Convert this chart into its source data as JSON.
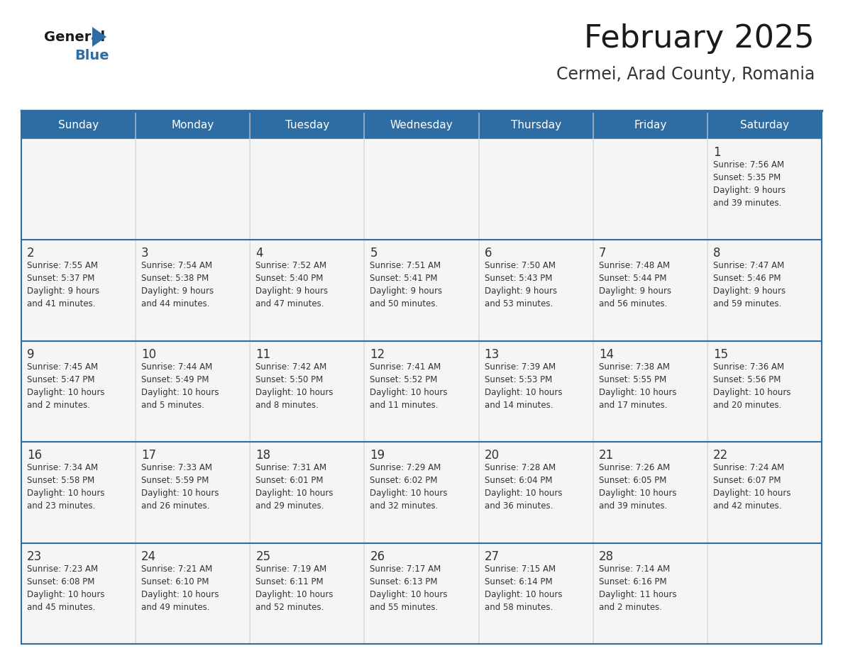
{
  "title": "February 2025",
  "subtitle": "Cermei, Arad County, Romania",
  "header_bg": "#2E6DA4",
  "header_text": "#FFFFFF",
  "cell_bg": "#F5F5F5",
  "border_color": "#2E6DA4",
  "row_separator_color": "#2E6DA4",
  "title_color": "#1a1a1a",
  "subtitle_color": "#333333",
  "day_number_color": "#333333",
  "cell_text_color": "#333333",
  "days_of_week": [
    "Sunday",
    "Monday",
    "Tuesday",
    "Wednesday",
    "Thursday",
    "Friday",
    "Saturday"
  ],
  "weeks": [
    [
      {
        "day": null,
        "text": ""
      },
      {
        "day": null,
        "text": ""
      },
      {
        "day": null,
        "text": ""
      },
      {
        "day": null,
        "text": ""
      },
      {
        "day": null,
        "text": ""
      },
      {
        "day": null,
        "text": ""
      },
      {
        "day": 1,
        "text": "Sunrise: 7:56 AM\nSunset: 5:35 PM\nDaylight: 9 hours\nand 39 minutes."
      }
    ],
    [
      {
        "day": 2,
        "text": "Sunrise: 7:55 AM\nSunset: 5:37 PM\nDaylight: 9 hours\nand 41 minutes."
      },
      {
        "day": 3,
        "text": "Sunrise: 7:54 AM\nSunset: 5:38 PM\nDaylight: 9 hours\nand 44 minutes."
      },
      {
        "day": 4,
        "text": "Sunrise: 7:52 AM\nSunset: 5:40 PM\nDaylight: 9 hours\nand 47 minutes."
      },
      {
        "day": 5,
        "text": "Sunrise: 7:51 AM\nSunset: 5:41 PM\nDaylight: 9 hours\nand 50 minutes."
      },
      {
        "day": 6,
        "text": "Sunrise: 7:50 AM\nSunset: 5:43 PM\nDaylight: 9 hours\nand 53 minutes."
      },
      {
        "day": 7,
        "text": "Sunrise: 7:48 AM\nSunset: 5:44 PM\nDaylight: 9 hours\nand 56 minutes."
      },
      {
        "day": 8,
        "text": "Sunrise: 7:47 AM\nSunset: 5:46 PM\nDaylight: 9 hours\nand 59 minutes."
      }
    ],
    [
      {
        "day": 9,
        "text": "Sunrise: 7:45 AM\nSunset: 5:47 PM\nDaylight: 10 hours\nand 2 minutes."
      },
      {
        "day": 10,
        "text": "Sunrise: 7:44 AM\nSunset: 5:49 PM\nDaylight: 10 hours\nand 5 minutes."
      },
      {
        "day": 11,
        "text": "Sunrise: 7:42 AM\nSunset: 5:50 PM\nDaylight: 10 hours\nand 8 minutes."
      },
      {
        "day": 12,
        "text": "Sunrise: 7:41 AM\nSunset: 5:52 PM\nDaylight: 10 hours\nand 11 minutes."
      },
      {
        "day": 13,
        "text": "Sunrise: 7:39 AM\nSunset: 5:53 PM\nDaylight: 10 hours\nand 14 minutes."
      },
      {
        "day": 14,
        "text": "Sunrise: 7:38 AM\nSunset: 5:55 PM\nDaylight: 10 hours\nand 17 minutes."
      },
      {
        "day": 15,
        "text": "Sunrise: 7:36 AM\nSunset: 5:56 PM\nDaylight: 10 hours\nand 20 minutes."
      }
    ],
    [
      {
        "day": 16,
        "text": "Sunrise: 7:34 AM\nSunset: 5:58 PM\nDaylight: 10 hours\nand 23 minutes."
      },
      {
        "day": 17,
        "text": "Sunrise: 7:33 AM\nSunset: 5:59 PM\nDaylight: 10 hours\nand 26 minutes."
      },
      {
        "day": 18,
        "text": "Sunrise: 7:31 AM\nSunset: 6:01 PM\nDaylight: 10 hours\nand 29 minutes."
      },
      {
        "day": 19,
        "text": "Sunrise: 7:29 AM\nSunset: 6:02 PM\nDaylight: 10 hours\nand 32 minutes."
      },
      {
        "day": 20,
        "text": "Sunrise: 7:28 AM\nSunset: 6:04 PM\nDaylight: 10 hours\nand 36 minutes."
      },
      {
        "day": 21,
        "text": "Sunrise: 7:26 AM\nSunset: 6:05 PM\nDaylight: 10 hours\nand 39 minutes."
      },
      {
        "day": 22,
        "text": "Sunrise: 7:24 AM\nSunset: 6:07 PM\nDaylight: 10 hours\nand 42 minutes."
      }
    ],
    [
      {
        "day": 23,
        "text": "Sunrise: 7:23 AM\nSunset: 6:08 PM\nDaylight: 10 hours\nand 45 minutes."
      },
      {
        "day": 24,
        "text": "Sunrise: 7:21 AM\nSunset: 6:10 PM\nDaylight: 10 hours\nand 49 minutes."
      },
      {
        "day": 25,
        "text": "Sunrise: 7:19 AM\nSunset: 6:11 PM\nDaylight: 10 hours\nand 52 minutes."
      },
      {
        "day": 26,
        "text": "Sunrise: 7:17 AM\nSunset: 6:13 PM\nDaylight: 10 hours\nand 55 minutes."
      },
      {
        "day": 27,
        "text": "Sunrise: 7:15 AM\nSunset: 6:14 PM\nDaylight: 10 hours\nand 58 minutes."
      },
      {
        "day": 28,
        "text": "Sunrise: 7:14 AM\nSunset: 6:16 PM\nDaylight: 11 hours\nand 2 minutes."
      },
      {
        "day": null,
        "text": ""
      }
    ]
  ]
}
